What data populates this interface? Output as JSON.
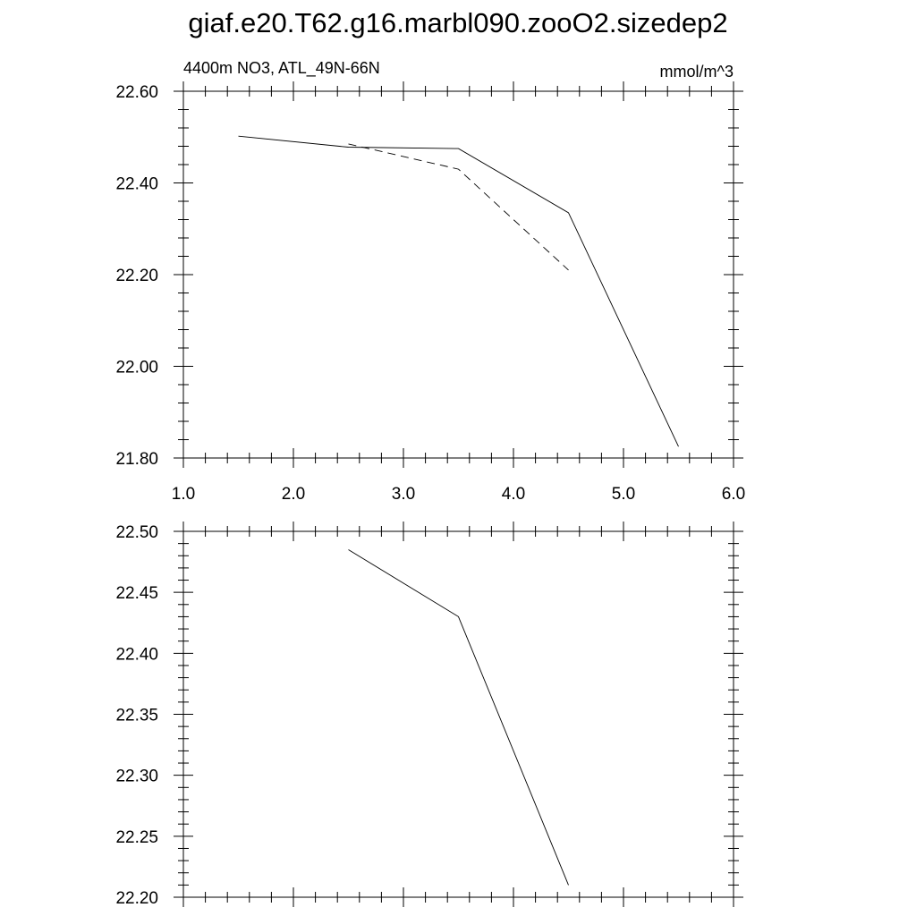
{
  "title": "giaf.e20.T62.g16.marbl090.zooO2.sizedep2",
  "chart_data": [
    {
      "type": "line",
      "subtitle_left": "4400m NO3, ATL_49N-66N",
      "subtitle_right": "mmol/m^3",
      "xlim": [
        1.0,
        6.0
      ],
      "ylim": [
        21.8,
        22.6
      ],
      "xticks": [
        1.0,
        2.0,
        3.0,
        4.0,
        5.0,
        6.0
      ],
      "xtick_labels": [
        "1.0",
        "2.0",
        "3.0",
        "4.0",
        "5.0",
        "6.0"
      ],
      "yticks": [
        21.8,
        22.0,
        22.2,
        22.4,
        22.6
      ],
      "ytick_labels": [
        "21.80",
        "22.00",
        "22.20",
        "22.40",
        "22.60"
      ],
      "series": [
        {
          "style": "solid",
          "x": [
            1.5,
            2.5,
            3.5,
            4.5,
            5.5
          ],
          "y": [
            22.502,
            22.478,
            22.475,
            22.335,
            21.825
          ]
        },
        {
          "style": "dashed",
          "x": [
            2.5,
            3.5,
            4.5
          ],
          "y": [
            22.485,
            22.43,
            22.21
          ]
        }
      ]
    },
    {
      "type": "line",
      "xlim": [
        1.0,
        6.0
      ],
      "ylim": [
        22.2,
        22.5
      ],
      "xticks": [
        1.0,
        2.0,
        3.0,
        4.0,
        5.0,
        6.0
      ],
      "yticks": [
        22.2,
        22.25,
        22.3,
        22.35,
        22.4,
        22.45,
        22.5
      ],
      "ytick_labels": [
        "22.20",
        "22.25",
        "22.30",
        "22.35",
        "22.40",
        "22.45",
        "22.50"
      ],
      "series": [
        {
          "style": "solid",
          "x": [
            2.5,
            3.5,
            4.5
          ],
          "y": [
            22.485,
            22.43,
            22.21
          ]
        }
      ]
    }
  ]
}
